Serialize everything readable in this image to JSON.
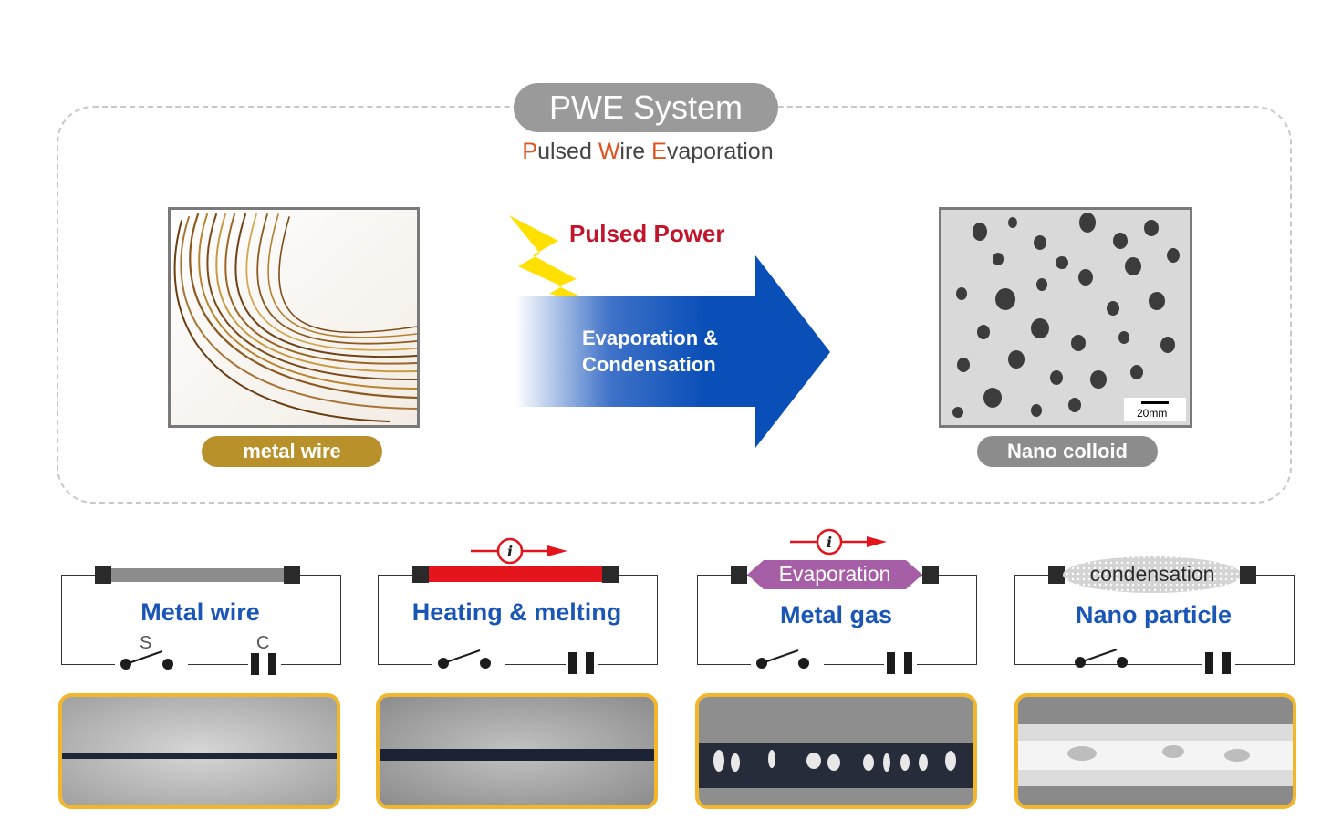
{
  "header": {
    "title": "PWE System",
    "subtitle": {
      "p1": "P",
      "r1": "ulsed ",
      "p2": "W",
      "r2": "ire ",
      "p3": "E",
      "r3": "vaporation"
    }
  },
  "process": {
    "input_caption": "metal wire",
    "output_caption": "Nano colloid",
    "energy_label": "Pulsed Power",
    "arrow_line1": "Evaporation &",
    "arrow_line2": "Condensation",
    "scale_label": "20mm"
  },
  "stages": [
    {
      "label": "Metal wire",
      "switch_letter": "S",
      "capacitor_letter": "C"
    },
    {
      "label": "Heating & melting"
    },
    {
      "label": "Metal gas",
      "bar_text": "Evaporation"
    },
    {
      "label": "Nano particle",
      "bar_text": "condensation"
    }
  ],
  "current_symbol": "i",
  "colors": {
    "frame_border": "#c8c8c8",
    "title_pill": "#9a9a9a",
    "highlight_letter": "#e0511c",
    "wire_caption": "#b8912a",
    "colloid_caption": "#8c8c8c",
    "pulsed_power": "#c0152b",
    "arrow_blue": "#0a4fb8",
    "stage_label": "#1a56b6",
    "heated_bar": "#e3141c",
    "gas_bar": "#a65fa6",
    "photo_frame": "#f2b62a"
  },
  "icons": [
    "lightning-bolt-icon",
    "current-arrow-icon",
    "switch-icon",
    "capacitor-icon"
  ]
}
